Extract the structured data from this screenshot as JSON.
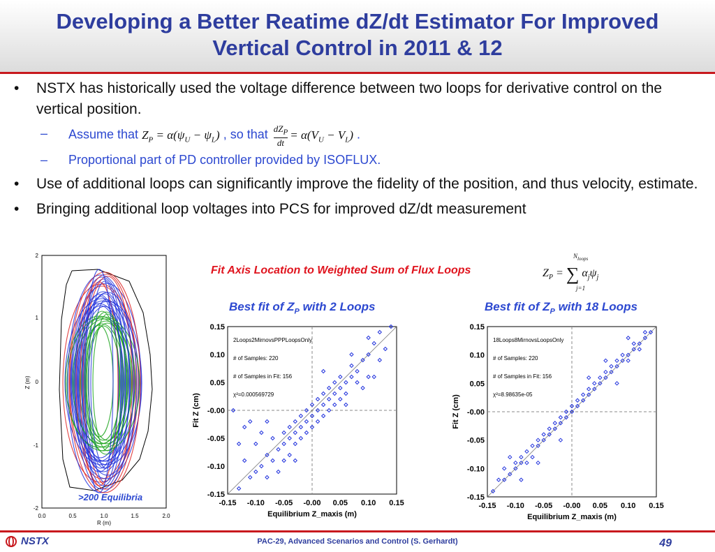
{
  "header": {
    "title_line1": "Developing a Better Reatime dZ/dt Estimator For Improved",
    "title_line2": "Vertical Control  in 2011 & 12"
  },
  "bullets": [
    {
      "text": "NSTX has historically used the voltage difference between two loops for derivative control on the vertical position.",
      "subs": [
        {
          "lead": "Assume that",
          "mid": ", so that",
          "tail": "."
        },
        {
          "text": "Proportional part of PD controller provided by ISOFLUX."
        }
      ]
    },
    {
      "text": "Use of additional loops can significantly improve the fidelity of the position, and thus velocity, estimate."
    },
    {
      "text": "Bringing additional loop voltages into PCS for improved dZ/dt measurement"
    }
  ],
  "fit_title": "Fit Axis Location to Weighted Sum of Flux Loops",
  "equilibria": {
    "label": ">200 Equilibria",
    "xlabel": "R (m)",
    "ylabel": "Z (m)",
    "xticks": [
      "0.0",
      "0.5",
      "1.0",
      "1.5",
      "2.0"
    ],
    "yticks": [
      "2",
      "1",
      "0",
      "-1",
      "-2"
    ]
  },
  "chart_data": [
    {
      "type": "scatter",
      "title": "Best fit of Z_P with 2 Loops",
      "annotations": [
        "2Loops2MirnovsPPPLoopsOnly",
        "# of Samples: 220",
        "# of Samples in Fit: 156",
        "χ²=0.000569729"
      ],
      "xlabel": "Equilibrium Z_maxis (m)",
      "ylabel": "Fit Z (cm)",
      "xlim": [
        -0.15,
        0.15
      ],
      "ylim": [
        -0.15,
        0.15
      ],
      "xticks": [
        "-0.15",
        "-0.10",
        "-0.05",
        "-0.00",
        "0.05",
        "0.10",
        "0.15"
      ],
      "yticks": [
        "0.15",
        "0.10",
        "0.05",
        "-0.00",
        "-0.05",
        "-0.10",
        "-0.15"
      ],
      "points": [
        [
          -0.13,
          -0.06
        ],
        [
          -0.12,
          -0.09
        ],
        [
          -0.11,
          -0.12
        ],
        [
          -0.1,
          -0.06
        ],
        [
          -0.1,
          -0.11
        ],
        [
          -0.09,
          -0.04
        ],
        [
          -0.09,
          -0.1
        ],
        [
          -0.08,
          -0.08
        ],
        [
          -0.08,
          -0.12
        ],
        [
          -0.07,
          -0.05
        ],
        [
          -0.07,
          -0.09
        ],
        [
          -0.06,
          -0.07
        ],
        [
          -0.06,
          -0.11
        ],
        [
          -0.05,
          -0.04
        ],
        [
          -0.05,
          -0.06
        ],
        [
          -0.05,
          -0.09
        ],
        [
          -0.04,
          -0.03
        ],
        [
          -0.04,
          -0.05
        ],
        [
          -0.04,
          -0.08
        ],
        [
          -0.03,
          -0.02
        ],
        [
          -0.03,
          -0.04
        ],
        [
          -0.03,
          -0.06
        ],
        [
          -0.02,
          -0.01
        ],
        [
          -0.02,
          -0.03
        ],
        [
          -0.02,
          -0.05
        ],
        [
          -0.01,
          0.0
        ],
        [
          -0.01,
          -0.02
        ],
        [
          -0.01,
          -0.04
        ],
        [
          0.0,
          0.01
        ],
        [
          0.0,
          -0.01
        ],
        [
          0.0,
          -0.03
        ],
        [
          0.01,
          0.0
        ],
        [
          0.01,
          0.02
        ],
        [
          0.01,
          -0.02
        ],
        [
          0.02,
          0.01
        ],
        [
          0.02,
          0.03
        ],
        [
          0.02,
          -0.01
        ],
        [
          0.03,
          0.02
        ],
        [
          0.03,
          0.04
        ],
        [
          0.03,
          0.0
        ],
        [
          0.04,
          0.03
        ],
        [
          0.04,
          0.05
        ],
        [
          0.04,
          0.01
        ],
        [
          0.05,
          0.04
        ],
        [
          0.05,
          0.06
        ],
        [
          0.05,
          0.02
        ],
        [
          0.06,
          0.05
        ],
        [
          0.06,
          0.03
        ],
        [
          0.07,
          0.06
        ],
        [
          0.07,
          0.08
        ],
        [
          0.08,
          0.05
        ],
        [
          0.08,
          0.07
        ],
        [
          0.09,
          0.04
        ],
        [
          0.09,
          0.09
        ],
        [
          0.1,
          0.06
        ],
        [
          0.1,
          0.1
        ],
        [
          0.11,
          0.12
        ],
        [
          0.12,
          0.09
        ],
        [
          0.12,
          0.14
        ],
        [
          0.13,
          0.11
        ],
        [
          -0.14,
          0.0
        ],
        [
          -0.12,
          -0.03
        ],
        [
          0.07,
          0.1
        ],
        [
          -0.11,
          -0.02
        ],
        [
          0.02,
          0.07
        ],
        [
          -0.03,
          -0.09
        ],
        [
          0.06,
          0.01
        ],
        [
          0.11,
          0.06
        ],
        [
          -0.08,
          -0.02
        ],
        [
          0.1,
          0.13
        ],
        [
          -0.13,
          -0.14
        ],
        [
          0.14,
          0.15
        ]
      ]
    },
    {
      "type": "scatter",
      "title": "Best fit of Z_P with 18 Loops",
      "annotations": [
        "18Loops8MirnovsLoopsOnly",
        "# of Samples: 220",
        "# of Samples in Fit: 156",
        "χ²=8.98635e-05"
      ],
      "xlabel": "Equilibrium Z_maxis (m)",
      "ylabel": "Fit Z (cm)",
      "xlim": [
        -0.15,
        0.15
      ],
      "ylim": [
        -0.15,
        0.15
      ],
      "xticks": [
        "-0.15",
        "-0.10",
        "-0.05",
        "-0.00",
        "0.05",
        "0.10",
        "0.15"
      ],
      "yticks": [
        "0.15",
        "0.10",
        "0.05",
        "-0.00",
        "-0.05",
        "-0.10",
        "-0.15"
      ],
      "points": [
        [
          -0.14,
          -0.14
        ],
        [
          -0.13,
          -0.12
        ],
        [
          -0.12,
          -0.12
        ],
        [
          -0.12,
          -0.1
        ],
        [
          -0.11,
          -0.11
        ],
        [
          -0.1,
          -0.09
        ],
        [
          -0.1,
          -0.1
        ],
        [
          -0.09,
          -0.08
        ],
        [
          -0.09,
          -0.09
        ],
        [
          -0.08,
          -0.07
        ],
        [
          -0.08,
          -0.09
        ],
        [
          -0.07,
          -0.06
        ],
        [
          -0.07,
          -0.08
        ],
        [
          -0.06,
          -0.06
        ],
        [
          -0.06,
          -0.05
        ],
        [
          -0.05,
          -0.05
        ],
        [
          -0.05,
          -0.04
        ],
        [
          -0.04,
          -0.04
        ],
        [
          -0.04,
          -0.03
        ],
        [
          -0.03,
          -0.03
        ],
        [
          -0.03,
          -0.02
        ],
        [
          -0.02,
          -0.02
        ],
        [
          -0.02,
          -0.01
        ],
        [
          -0.01,
          -0.01
        ],
        [
          -0.01,
          0.0
        ],
        [
          0.0,
          0.0
        ],
        [
          0.0,
          0.01
        ],
        [
          0.01,
          0.01
        ],
        [
          0.01,
          0.02
        ],
        [
          0.02,
          0.02
        ],
        [
          0.02,
          0.03
        ],
        [
          0.03,
          0.03
        ],
        [
          0.03,
          0.04
        ],
        [
          0.04,
          0.04
        ],
        [
          0.04,
          0.05
        ],
        [
          0.05,
          0.05
        ],
        [
          0.05,
          0.06
        ],
        [
          0.06,
          0.06
        ],
        [
          0.06,
          0.07
        ],
        [
          0.07,
          0.07
        ],
        [
          0.07,
          0.08
        ],
        [
          0.08,
          0.08
        ],
        [
          0.08,
          0.09
        ],
        [
          0.09,
          0.09
        ],
        [
          0.09,
          0.1
        ],
        [
          0.1,
          0.1
        ],
        [
          0.1,
          0.09
        ],
        [
          0.11,
          0.11
        ],
        [
          0.11,
          0.12
        ],
        [
          0.12,
          0.12
        ],
        [
          0.12,
          0.11
        ],
        [
          0.13,
          0.13
        ],
        [
          0.13,
          0.14
        ],
        [
          0.14,
          0.14
        ],
        [
          -0.11,
          -0.08
        ],
        [
          -0.06,
          -0.09
        ],
        [
          0.03,
          0.06
        ],
        [
          0.06,
          0.09
        ],
        [
          -0.09,
          -0.12
        ],
        [
          0.1,
          0.13
        ],
        [
          -0.02,
          -0.05
        ],
        [
          0.08,
          0.05
        ]
      ]
    }
  ],
  "footer": {
    "logo": "NSTX",
    "text": "PAC-29, Advanced Scenarios and Control (S. Gerhardt)",
    "page": "49"
  }
}
